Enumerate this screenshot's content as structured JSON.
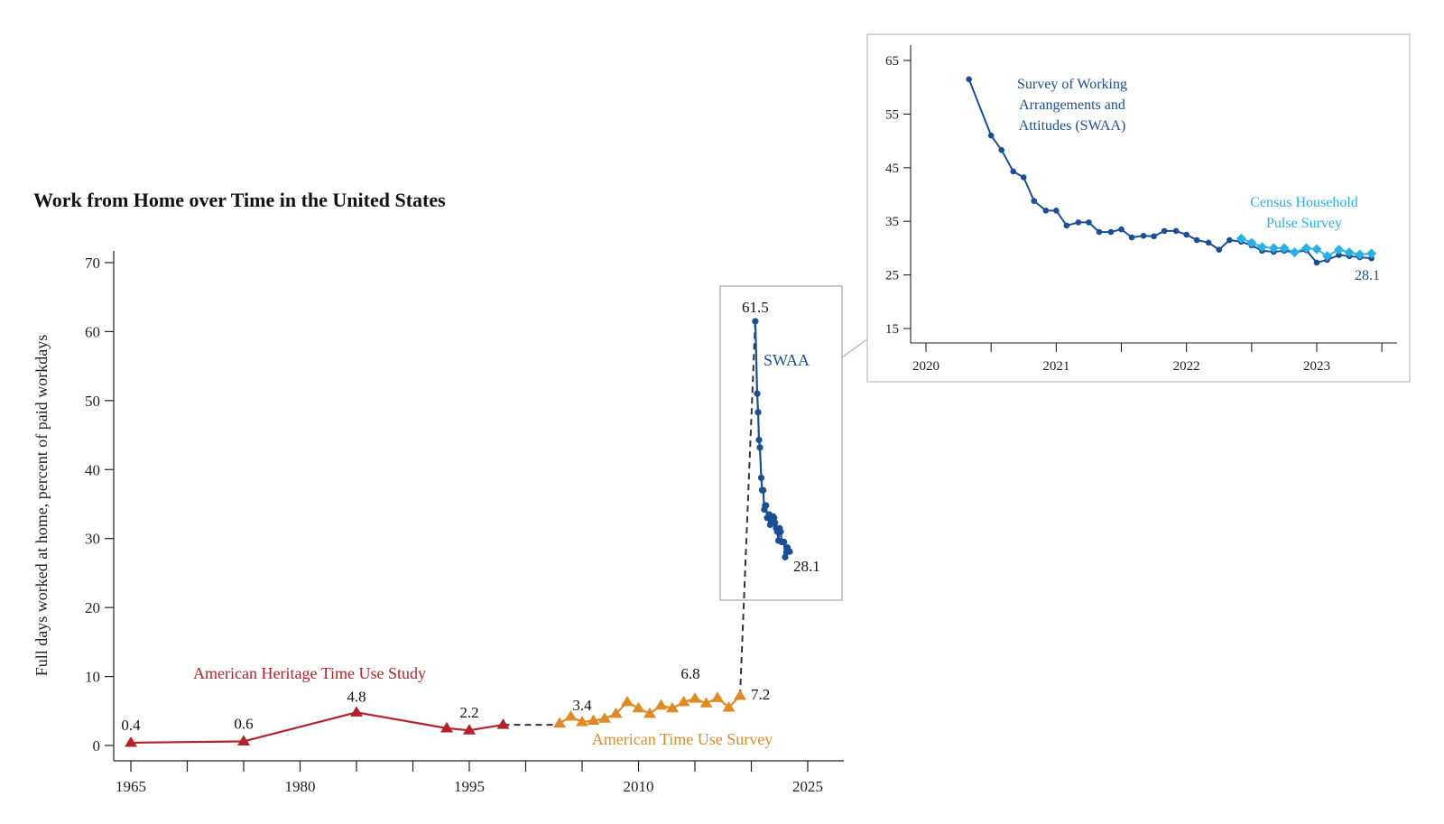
{
  "title": "Work from Home over Time in the United States",
  "chart_data": [
    {
      "type": "line",
      "title": "Work from Home over Time in the United States",
      "xlabel": "",
      "ylabel": "Full days worked at home, percent of paid workdays",
      "xlim": [
        1963,
        2030
      ],
      "ylim": [
        -2,
        72
      ],
      "x_ticks": [
        "1965",
        "1980",
        "1995",
        "2010",
        "2025"
      ],
      "y_ticks": [
        "0",
        "10",
        "20",
        "30",
        "40",
        "50",
        "60",
        "70"
      ],
      "series": [
        {
          "name": "American Heritage Time Use Study",
          "color": "#b3222a",
          "marker": "triangle",
          "points": [
            [
              1965,
              0.4
            ],
            [
              1975,
              0.6
            ],
            [
              1985,
              4.8
            ],
            [
              1993,
              2.5
            ],
            [
              1995,
              2.2
            ],
            [
              1998,
              3.0
            ]
          ]
        },
        {
          "name": "American Time Use Survey",
          "color": "#e08a26",
          "marker": "triangle",
          "points": [
            [
              2003,
              3.2
            ],
            [
              2004,
              4.2
            ],
            [
              2005,
              3.4
            ],
            [
              2006,
              3.6
            ],
            [
              2007,
              3.9
            ],
            [
              2008,
              4.6
            ],
            [
              2009,
              6.3
            ],
            [
              2010,
              5.4
            ],
            [
              2011,
              4.6
            ],
            [
              2012,
              5.8
            ],
            [
              2013,
              5.4
            ],
            [
              2014,
              6.3
            ],
            [
              2015,
              6.8
            ],
            [
              2016,
              6.1
            ],
            [
              2017,
              6.9
            ],
            [
              2018,
              5.5
            ],
            [
              2019,
              7.2
            ]
          ]
        },
        {
          "name": "SWAA",
          "color": "#1a4f93",
          "marker": "circle",
          "points": [
            [
              2020.35,
              61.5
            ],
            [
              2020.52,
              51.0
            ],
            [
              2020.6,
              48.3
            ],
            [
              2020.68,
              44.3
            ],
            [
              2020.76,
              43.2
            ],
            [
              2020.88,
              38.8
            ],
            [
              2020.96,
              37.0
            ],
            [
              2021.05,
              37.0
            ],
            [
              2021.15,
              34.2
            ],
            [
              2021.22,
              34.8
            ],
            [
              2021.3,
              34.8
            ],
            [
              2021.4,
              33.0
            ],
            [
              2021.5,
              33.0
            ],
            [
              2021.58,
              33.5
            ],
            [
              2021.67,
              32.0
            ],
            [
              2021.75,
              32.3
            ],
            [
              2021.85,
              32.2
            ],
            [
              2021.93,
              33.2
            ],
            [
              2022.02,
              33.0
            ],
            [
              2022.1,
              32.3
            ],
            [
              2022.2,
              31.5
            ],
            [
              2022.3,
              31.0
            ],
            [
              2022.4,
              29.7
            ],
            [
              2022.5,
              31.5
            ],
            [
              2022.6,
              31.0
            ],
            [
              2022.7,
              29.5
            ],
            [
              2022.8,
              29.5
            ],
            [
              2022.9,
              29.5
            ],
            [
              2023.0,
              27.3
            ],
            [
              2023.1,
              28.0
            ],
            [
              2023.2,
              28.7
            ],
            [
              2023.3,
              28.2
            ],
            [
              2023.4,
              28.1
            ]
          ]
        }
      ],
      "connectors": [
        {
          "from": [
            1998,
            3.0
          ],
          "to": [
            2003,
            3.0
          ]
        },
        {
          "from": [
            2019,
            7.2
          ],
          "to": [
            2020.35,
            61.5
          ]
        }
      ],
      "annotations": [
        {
          "text": "0.4",
          "x": 1965,
          "y": 0.4
        },
        {
          "text": "0.6",
          "x": 1975,
          "y": 0.6
        },
        {
          "text": "4.8",
          "x": 1985,
          "y": 4.8
        },
        {
          "text": "2.2",
          "x": 1995,
          "y": 2.2
        },
        {
          "text": "3.4",
          "x": 2005,
          "y": 3.4
        },
        {
          "text": "6.8",
          "x": 2015,
          "y": 6.8
        },
        {
          "text": "7.2",
          "x": 2019,
          "y": 7.2
        },
        {
          "text": "61.5",
          "x": 2020.35,
          "y": 61.5
        },
        {
          "text": "28.1",
          "x": 2023.4,
          "y": 28.1
        }
      ],
      "series_labels": [
        "American Heritage Time Use Study",
        "American Time Use Survey",
        "SWAA"
      ]
    },
    {
      "type": "line",
      "title": "",
      "xlabel": "",
      "ylabel": "",
      "xlim": [
        2019.97,
        2023.63
      ],
      "ylim": [
        13,
        67
      ],
      "x_ticks": [
        "2020",
        "2021",
        "2022",
        "2023"
      ],
      "y_ticks": [
        "15",
        "25",
        "35",
        "45",
        "55",
        "65"
      ],
      "series": [
        {
          "name": "Survey of Working Arrangements and Attitudes (SWAA)",
          "color": "#1a4f93",
          "marker": "circle",
          "points": [
            [
              2020.33,
              61.5
            ],
            [
              2020.5,
              51.0
            ],
            [
              2020.58,
              48.3
            ],
            [
              2020.67,
              44.3
            ],
            [
              2020.75,
              43.2
            ],
            [
              2020.83,
              38.8
            ],
            [
              2020.92,
              37.0
            ],
            [
              2021.0,
              37.0
            ],
            [
              2021.08,
              34.2
            ],
            [
              2021.17,
              34.8
            ],
            [
              2021.25,
              34.8
            ],
            [
              2021.33,
              33.0
            ],
            [
              2021.42,
              33.0
            ],
            [
              2021.5,
              33.5
            ],
            [
              2021.58,
              32.0
            ],
            [
              2021.67,
              32.3
            ],
            [
              2021.75,
              32.2
            ],
            [
              2021.83,
              33.2
            ],
            [
              2021.92,
              33.2
            ],
            [
              2022.0,
              32.5
            ],
            [
              2022.08,
              31.5
            ],
            [
              2022.17,
              31.0
            ],
            [
              2022.25,
              29.7
            ],
            [
              2022.33,
              31.5
            ],
            [
              2022.42,
              31.2
            ],
            [
              2022.5,
              30.5
            ],
            [
              2022.58,
              29.5
            ],
            [
              2022.67,
              29.3
            ],
            [
              2022.75,
              29.5
            ],
            [
              2022.83,
              29.2
            ],
            [
              2022.92,
              29.6
            ],
            [
              2023.0,
              27.3
            ],
            [
              2023.08,
              27.8
            ],
            [
              2023.17,
              28.7
            ],
            [
              2023.25,
              28.5
            ],
            [
              2023.33,
              28.3
            ],
            [
              2023.42,
              28.1
            ]
          ]
        },
        {
          "name": "Census Household Pulse Survey",
          "color": "#2bb0e6",
          "marker": "diamond",
          "points": [
            [
              2022.42,
              31.8
            ],
            [
              2022.5,
              31.0
            ],
            [
              2022.58,
              30.2
            ],
            [
              2022.67,
              30.0
            ],
            [
              2022.75,
              30.0
            ],
            [
              2022.83,
              29.2
            ],
            [
              2022.92,
              30.0
            ],
            [
              2023.0,
              29.8
            ],
            [
              2023.08,
              28.5
            ],
            [
              2023.17,
              29.7
            ],
            [
              2023.25,
              29.2
            ],
            [
              2023.33,
              28.8
            ],
            [
              2023.42,
              29.0
            ]
          ]
        }
      ],
      "annotations": [
        {
          "text": "28.1",
          "x": 2023.42,
          "y": 28.1
        }
      ],
      "series_labels": {
        "swaa": [
          "Survey of Working",
          "Arrangements and",
          "Attitudes (SWAA)"
        ],
        "pulse": [
          "Census Household",
          "Pulse Survey"
        ]
      }
    }
  ]
}
